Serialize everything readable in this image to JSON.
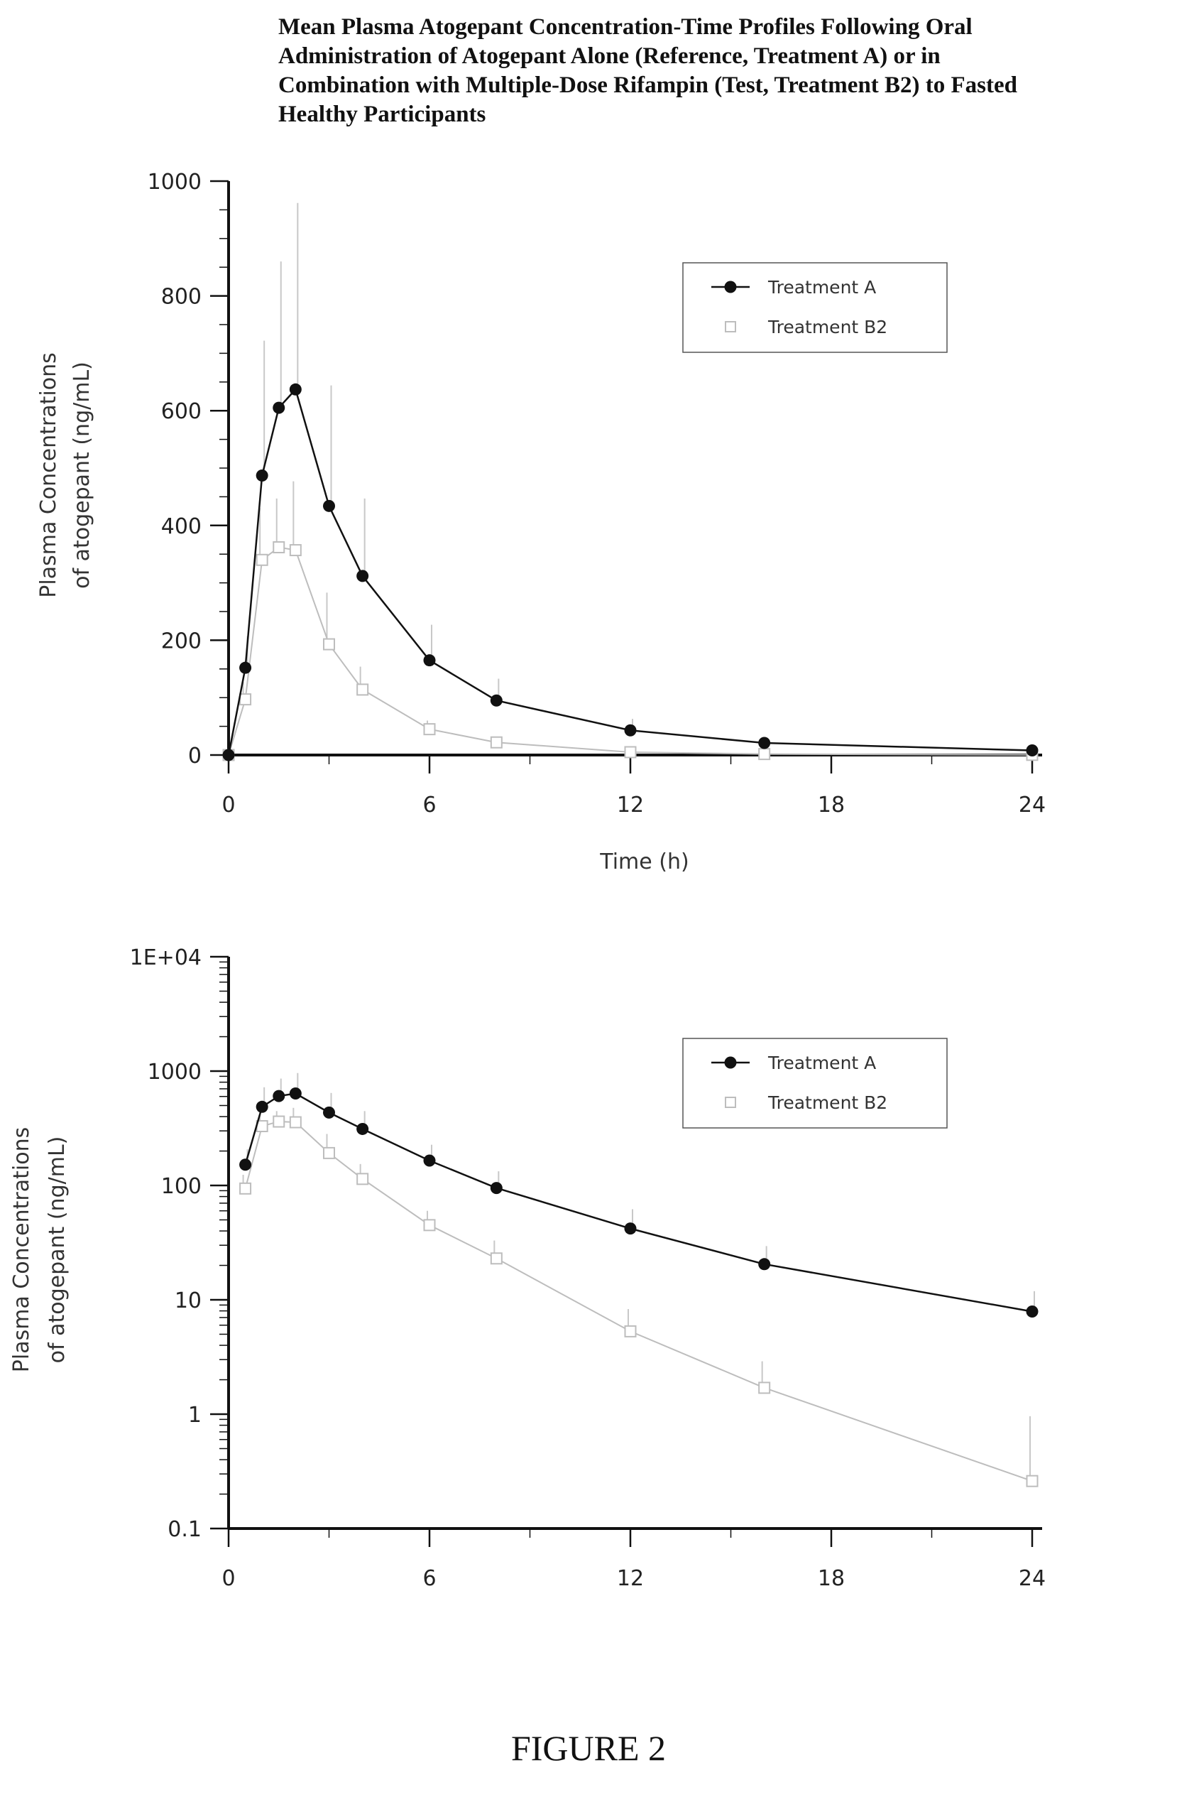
{
  "title_lines": [
    "Mean Plasma Atogepant Concentration-Time Profiles Following Oral",
    "Administration of Atogepant Alone (Reference, Treatment A) or in",
    "Combination with Multiple-Dose Rifampin (Test, Treatment B2) to Fasted",
    "Healthy Participants"
  ],
  "figure_label": "FIGURE 2",
  "colors": {
    "treatment_a": "#111111",
    "treatment_b2": "#bdbdbd",
    "error_bar": "#c8c8c8",
    "axis": "#111111"
  },
  "chart_data": [
    {
      "type": "line",
      "scale": "linear",
      "xlabel": "Time (h)",
      "ylabel_lines": [
        "Plasma Concentrations",
        "of atogepant (ng/mL)"
      ],
      "xlim": [
        0,
        24
      ],
      "ylim": [
        0,
        1000
      ],
      "xticks": [
        0,
        6,
        12,
        18,
        24
      ],
      "yticks": [
        0,
        200,
        400,
        600,
        800,
        1000
      ],
      "ytick_labels": [
        "0",
        "200",
        "400",
        "600",
        "800",
        "1000"
      ],
      "legend": "top-right",
      "series": [
        {
          "name": "Treatment A",
          "marker": "filled-circle",
          "x": [
            0,
            0.5,
            1,
            1.5,
            2,
            3,
            4,
            6,
            8,
            12,
            16,
            24
          ],
          "y": [
            0,
            152,
            487,
            605,
            637,
            434,
            312,
            165,
            95,
            43,
            21,
            8
          ],
          "err": [
            0,
            55,
            235,
            255,
            325,
            210,
            135,
            62,
            38,
            20,
            9,
            4
          ]
        },
        {
          "name": "Treatment B2",
          "marker": "open-square",
          "x": [
            0,
            0.5,
            1,
            1.5,
            2,
            3,
            4,
            6,
            8,
            12,
            16,
            24
          ],
          "y": [
            0,
            97,
            340,
            362,
            357,
            193,
            114,
            45,
            22,
            5,
            1.7,
            0.26
          ],
          "err": [
            0,
            30,
            90,
            85,
            120,
            90,
            40,
            15,
            10,
            3,
            1,
            0.5
          ]
        }
      ]
    },
    {
      "type": "line",
      "scale": "log",
      "xlabel": "",
      "ylabel_lines": [
        "Plasma Concentrations",
        "of atogepant (ng/mL)"
      ],
      "xlim": [
        0,
        24
      ],
      "ylim": [
        0.1,
        10000
      ],
      "xticks": [
        0,
        6,
        12,
        18,
        24
      ],
      "yticks": [
        0.1,
        1,
        10,
        100,
        1000,
        10000
      ],
      "ytick_labels": [
        "0.1",
        "1",
        "10",
        "100",
        "1000",
        "1E+04"
      ],
      "legend": "top-right",
      "series": [
        {
          "name": "Treatment A",
          "marker": "filled-circle",
          "x": [
            0.5,
            1,
            1.5,
            2,
            3,
            4,
            6,
            8,
            12,
            16,
            24
          ],
          "y": [
            152,
            487,
            605,
            637,
            434,
            312,
            165,
            95,
            42,
            20.5,
            7.9
          ],
          "err": [
            55,
            235,
            255,
            325,
            210,
            135,
            62,
            38,
            20,
            9,
            4
          ]
        },
        {
          "name": "Treatment B2",
          "marker": "open-square",
          "x": [
            0.5,
            1,
            1.5,
            2,
            3,
            4,
            6,
            8,
            12,
            16,
            24
          ],
          "y": [
            94,
            330,
            362,
            357,
            192,
            114,
            45,
            23,
            5.3,
            1.7,
            0.26
          ],
          "err": [
            30,
            90,
            85,
            120,
            90,
            40,
            15,
            10,
            3,
            1.2,
            0.7
          ]
        }
      ]
    }
  ]
}
